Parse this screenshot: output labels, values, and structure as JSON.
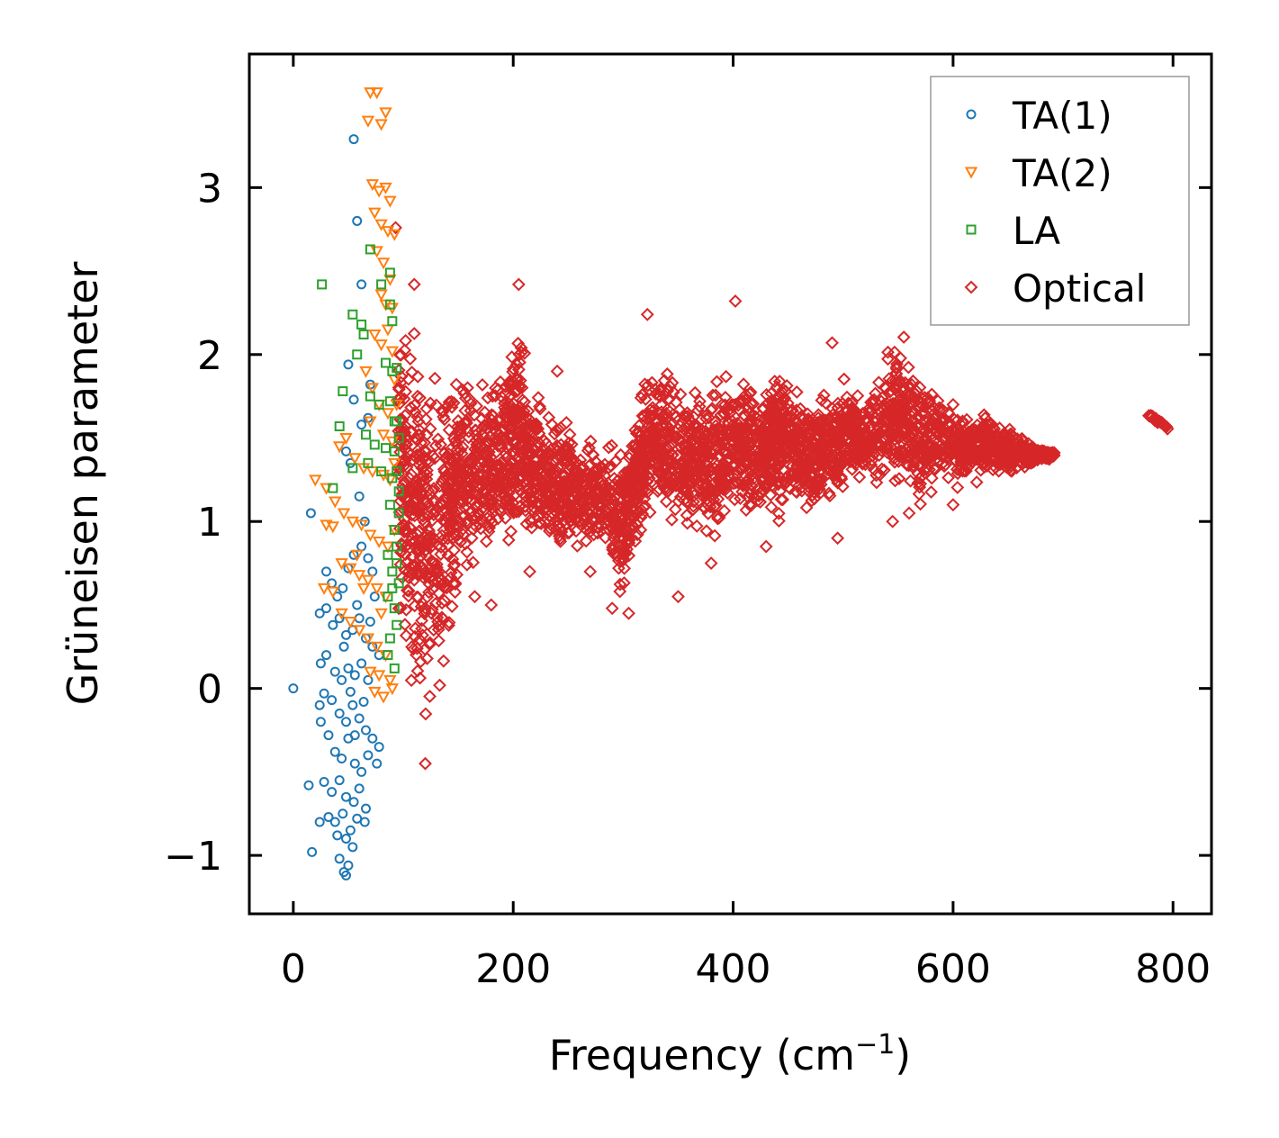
{
  "chart_data": {
    "type": "scatter",
    "title": "",
    "xlabel": "Frequency (cm",
    "xlabel_sup": "−1",
    "xlabel_close": ")",
    "ylabel": "Grüneisen parameter",
    "xlim": [
      -40,
      835
    ],
    "ylim": [
      -1.35,
      3.8
    ],
    "xticks": [
      0,
      200,
      400,
      600,
      800
    ],
    "xtick_labels": [
      "0",
      "200",
      "400",
      "600",
      "800"
    ],
    "yticks": [
      -1,
      0,
      1,
      2,
      3
    ],
    "ytick_labels": [
      "−1",
      "0",
      "1",
      "2",
      "3"
    ],
    "grid": false,
    "legend_position": "top-right",
    "series": [
      {
        "name": "TA(1)",
        "marker": "circle",
        "color": "#1f77b4",
        "points": [
          [
            0,
            0
          ],
          [
            55,
            3.29
          ],
          [
            58,
            2.8
          ],
          [
            16,
            1.05
          ],
          [
            62,
            2.42
          ],
          [
            50,
            1.94
          ],
          [
            55,
            1.73
          ],
          [
            70,
            1.82
          ],
          [
            62,
            1.58
          ],
          [
            68,
            1.62
          ],
          [
            48,
            1.42
          ],
          [
            52,
            1.35
          ],
          [
            60,
            1.15
          ],
          [
            65,
            1.0
          ],
          [
            30,
            0.7
          ],
          [
            35,
            0.63
          ],
          [
            40,
            0.55
          ],
          [
            45,
            0.6
          ],
          [
            50,
            0.72
          ],
          [
            55,
            0.8
          ],
          [
            62,
            0.85
          ],
          [
            68,
            0.78
          ],
          [
            72,
            0.7
          ],
          [
            24,
            0.45
          ],
          [
            30,
            0.48
          ],
          [
            36,
            0.38
          ],
          [
            42,
            0.42
          ],
          [
            48,
            0.32
          ],
          [
            54,
            0.35
          ],
          [
            60,
            0.42
          ],
          [
            66,
            0.3
          ],
          [
            72,
            0.25
          ],
          [
            78,
            0.2
          ],
          [
            25,
            0.15
          ],
          [
            30,
            0.2
          ],
          [
            38,
            0.1
          ],
          [
            44,
            0.05
          ],
          [
            50,
            0.12
          ],
          [
            56,
            0.08
          ],
          [
            62,
            0.15
          ],
          [
            68,
            0.05
          ],
          [
            24,
            -0.1
          ],
          [
            28,
            -0.03
          ],
          [
            35,
            -0.07
          ],
          [
            42,
            -0.15
          ],
          [
            48,
            -0.2
          ],
          [
            54,
            -0.1
          ],
          [
            60,
            -0.18
          ],
          [
            66,
            -0.25
          ],
          [
            72,
            -0.3
          ],
          [
            78,
            -0.35
          ],
          [
            25,
            -0.2
          ],
          [
            32,
            -0.28
          ],
          [
            38,
            -0.38
          ],
          [
            44,
            -0.42
          ],
          [
            50,
            -0.3
          ],
          [
            56,
            -0.45
          ],
          [
            62,
            -0.5
          ],
          [
            68,
            -0.4
          ],
          [
            76,
            -0.45
          ],
          [
            14,
            -0.58
          ],
          [
            28,
            -0.56
          ],
          [
            35,
            -0.62
          ],
          [
            42,
            -0.55
          ],
          [
            48,
            -0.65
          ],
          [
            55,
            -0.68
          ],
          [
            60,
            -0.6
          ],
          [
            66,
            -0.72
          ],
          [
            24,
            -0.8
          ],
          [
            32,
            -0.77
          ],
          [
            38,
            -0.8
          ],
          [
            45,
            -0.75
          ],
          [
            52,
            -0.85
          ],
          [
            58,
            -0.78
          ],
          [
            65,
            -0.8
          ],
          [
            40,
            -0.88
          ],
          [
            48,
            -0.9
          ],
          [
            54,
            -0.95
          ],
          [
            42,
            -1.02
          ],
          [
            50,
            -1.06
          ],
          [
            46,
            -1.1
          ],
          [
            48,
            -1.12
          ],
          [
            17,
            -0.98
          ],
          [
            56,
            -0.28
          ],
          [
            64,
            -0.08
          ],
          [
            70,
            0.4
          ],
          [
            74,
            0.55
          ],
          [
            58,
            0.5
          ],
          [
            46,
            0.25
          ],
          [
            52,
            -0.02
          ]
        ]
      },
      {
        "name": "TA(2)",
        "marker": "triangle",
        "color": "#ff7f0e",
        "points": [
          [
            70,
            3.57
          ],
          [
            76,
            3.57
          ],
          [
            80,
            3.38
          ],
          [
            84,
            3.45
          ],
          [
            68,
            3.4
          ],
          [
            72,
            3.02
          ],
          [
            78,
            2.98
          ],
          [
            84,
            3.0
          ],
          [
            88,
            2.92
          ],
          [
            74,
            2.85
          ],
          [
            80,
            2.78
          ],
          [
            86,
            2.74
          ],
          [
            92,
            2.72
          ],
          [
            76,
            2.62
          ],
          [
            82,
            2.55
          ],
          [
            88,
            2.45
          ],
          [
            80,
            2.36
          ],
          [
            84,
            2.3
          ],
          [
            90,
            2.28
          ],
          [
            86,
            2.15
          ],
          [
            74,
            2.12
          ],
          [
            80,
            2.06
          ],
          [
            90,
            2.02
          ],
          [
            66,
            1.9
          ],
          [
            72,
            1.8
          ],
          [
            78,
            1.7
          ],
          [
            86,
            1.65
          ],
          [
            70,
            1.6
          ],
          [
            82,
            1.52
          ],
          [
            90,
            1.48
          ],
          [
            42,
            1.45
          ],
          [
            48,
            1.5
          ],
          [
            56,
            1.38
          ],
          [
            64,
            1.32
          ],
          [
            72,
            1.3
          ],
          [
            82,
            1.28
          ],
          [
            88,
            1.25
          ],
          [
            20,
            1.25
          ],
          [
            30,
            1.2
          ],
          [
            38,
            1.12
          ],
          [
            46,
            1.05
          ],
          [
            54,
            1.0
          ],
          [
            62,
            0.98
          ],
          [
            70,
            0.92
          ],
          [
            78,
            0.88
          ],
          [
            86,
            0.85
          ],
          [
            30,
            0.98
          ],
          [
            36,
            0.97
          ],
          [
            44,
            0.75
          ],
          [
            52,
            0.72
          ],
          [
            60,
            0.68
          ],
          [
            68,
            0.65
          ],
          [
            76,
            0.6
          ],
          [
            84,
            0.55
          ],
          [
            28,
            0.6
          ],
          [
            36,
            0.58
          ],
          [
            44,
            0.45
          ],
          [
            52,
            0.4
          ],
          [
            60,
            0.35
          ],
          [
            68,
            0.3
          ],
          [
            76,
            0.25
          ],
          [
            84,
            0.2
          ],
          [
            70,
            0.1
          ],
          [
            78,
            0.08
          ],
          [
            88,
            0.05
          ],
          [
            74,
            -0.02
          ],
          [
            82,
            -0.05
          ],
          [
            90,
            0.0
          ],
          [
            58,
            0.8
          ],
          [
            64,
            0.6
          ],
          [
            80,
            0.45
          ],
          [
            92,
            0.95
          ],
          [
            92,
            1.35
          ],
          [
            94,
            1.7
          ],
          [
            92,
            1.85
          ]
        ]
      },
      {
        "name": "LA",
        "marker": "square",
        "color": "#2ca02c",
        "points": [
          [
            26,
            2.42
          ],
          [
            70,
            2.63
          ],
          [
            88,
            2.49
          ],
          [
            80,
            2.42
          ],
          [
            88,
            2.3
          ],
          [
            54,
            2.24
          ],
          [
            62,
            2.18
          ],
          [
            64,
            2.12
          ],
          [
            90,
            2.2
          ],
          [
            58,
            2.0
          ],
          [
            84,
            1.95
          ],
          [
            90,
            1.9
          ],
          [
            94,
            1.92
          ],
          [
            45,
            1.78
          ],
          [
            70,
            1.75
          ],
          [
            78,
            1.7
          ],
          [
            88,
            1.72
          ],
          [
            92,
            1.6
          ],
          [
            42,
            1.57
          ],
          [
            66,
            1.52
          ],
          [
            74,
            1.46
          ],
          [
            84,
            1.44
          ],
          [
            92,
            1.42
          ],
          [
            36,
            1.2
          ],
          [
            54,
            1.32
          ],
          [
            68,
            1.35
          ],
          [
            80,
            1.3
          ],
          [
            90,
            1.26
          ],
          [
            96,
            1.18
          ],
          [
            88,
            1.1
          ],
          [
            92,
            0.95
          ],
          [
            94,
            0.85
          ],
          [
            86,
            0.8
          ],
          [
            90,
            0.7
          ],
          [
            96,
            0.63
          ],
          [
            86,
            0.55
          ],
          [
            92,
            0.48
          ],
          [
            94,
            0.38
          ],
          [
            88,
            0.3
          ],
          [
            92,
            0.12
          ],
          [
            86,
            0.2
          ],
          [
            94,
            1.6
          ],
          [
            96,
            1.5
          ],
          [
            94,
            1.3
          ],
          [
            96,
            1.05
          ],
          [
            94,
            0.75
          ],
          [
            90,
            0.6
          ]
        ]
      }
    ],
    "optical": {
      "name": "Optical",
      "marker": "diamond",
      "color": "#d62728",
      "envelope": [
        [
          95,
          0.3,
          2.3
        ],
        [
          105,
          -0.1,
          2.35
        ],
        [
          115,
          -0.3,
          2.3
        ],
        [
          125,
          -0.3,
          2.1
        ],
        [
          140,
          0.1,
          2.0
        ],
        [
          150,
          0.55,
          1.95
        ],
        [
          165,
          0.6,
          1.9
        ],
        [
          180,
          0.7,
          1.85
        ],
        [
          195,
          0.6,
          2.2
        ],
        [
          205,
          0.75,
          2.3
        ],
        [
          215,
          0.85,
          1.85
        ],
        [
          230,
          0.75,
          1.75
        ],
        [
          245,
          0.7,
          1.75
        ],
        [
          260,
          0.75,
          1.6
        ],
        [
          280,
          0.75,
          1.55
        ],
        [
          300,
          0.5,
          1.5
        ],
        [
          310,
          0.75,
          1.7
        ],
        [
          320,
          0.9,
          1.9
        ],
        [
          335,
          1.0,
          2.05
        ],
        [
          350,
          0.95,
          1.9
        ],
        [
          365,
          0.85,
          1.85
        ],
        [
          380,
          0.8,
          1.85
        ],
        [
          395,
          0.9,
          1.95
        ],
        [
          410,
          1.0,
          1.9
        ],
        [
          425,
          0.95,
          1.85
        ],
        [
          435,
          0.95,
          2.0
        ],
        [
          445,
          0.95,
          2.05
        ],
        [
          460,
          1.05,
          1.8
        ],
        [
          475,
          1.0,
          1.75
        ],
        [
          490,
          1.05,
          1.85
        ],
        [
          505,
          1.15,
          1.9
        ],
        [
          520,
          1.2,
          1.75
        ],
        [
          540,
          1.2,
          2.05
        ],
        [
          555,
          1.15,
          2.15
        ],
        [
          570,
          1.05,
          1.95
        ],
        [
          590,
          1.2,
          1.75
        ],
        [
          610,
          1.2,
          1.7
        ],
        [
          630,
          1.25,
          1.65
        ],
        [
          650,
          1.25,
          1.58
        ],
        [
          665,
          1.3,
          1.5
        ],
        [
          680,
          1.35,
          1.45
        ],
        [
          692,
          1.38,
          1.42
        ]
      ],
      "outliers": [
        [
          93,
          2.76
        ],
        [
          110,
          2.42
        ],
        [
          205,
          2.42
        ],
        [
          322,
          2.24
        ],
        [
          402,
          2.32
        ],
        [
          490,
          2.07
        ],
        [
          240,
          1.9
        ],
        [
          560,
          1.05
        ],
        [
          600,
          1.1
        ],
        [
          545,
          1.0
        ],
        [
          495,
          0.9
        ],
        [
          380,
          0.75
        ],
        [
          290,
          0.48
        ],
        [
          305,
          0.45
        ],
        [
          350,
          0.55
        ],
        [
          165,
          0.55
        ],
        [
          120,
          -0.45
        ],
        [
          600,
          1.7
        ],
        [
          430,
          0.85
        ],
        [
          270,
          0.7
        ],
        [
          180,
          0.5
        ],
        [
          215,
          0.7
        ]
      ],
      "cluster": {
        "x_range": [
          778,
          795
        ],
        "y_range": [
          1.56,
          1.64
        ]
      }
    }
  }
}
